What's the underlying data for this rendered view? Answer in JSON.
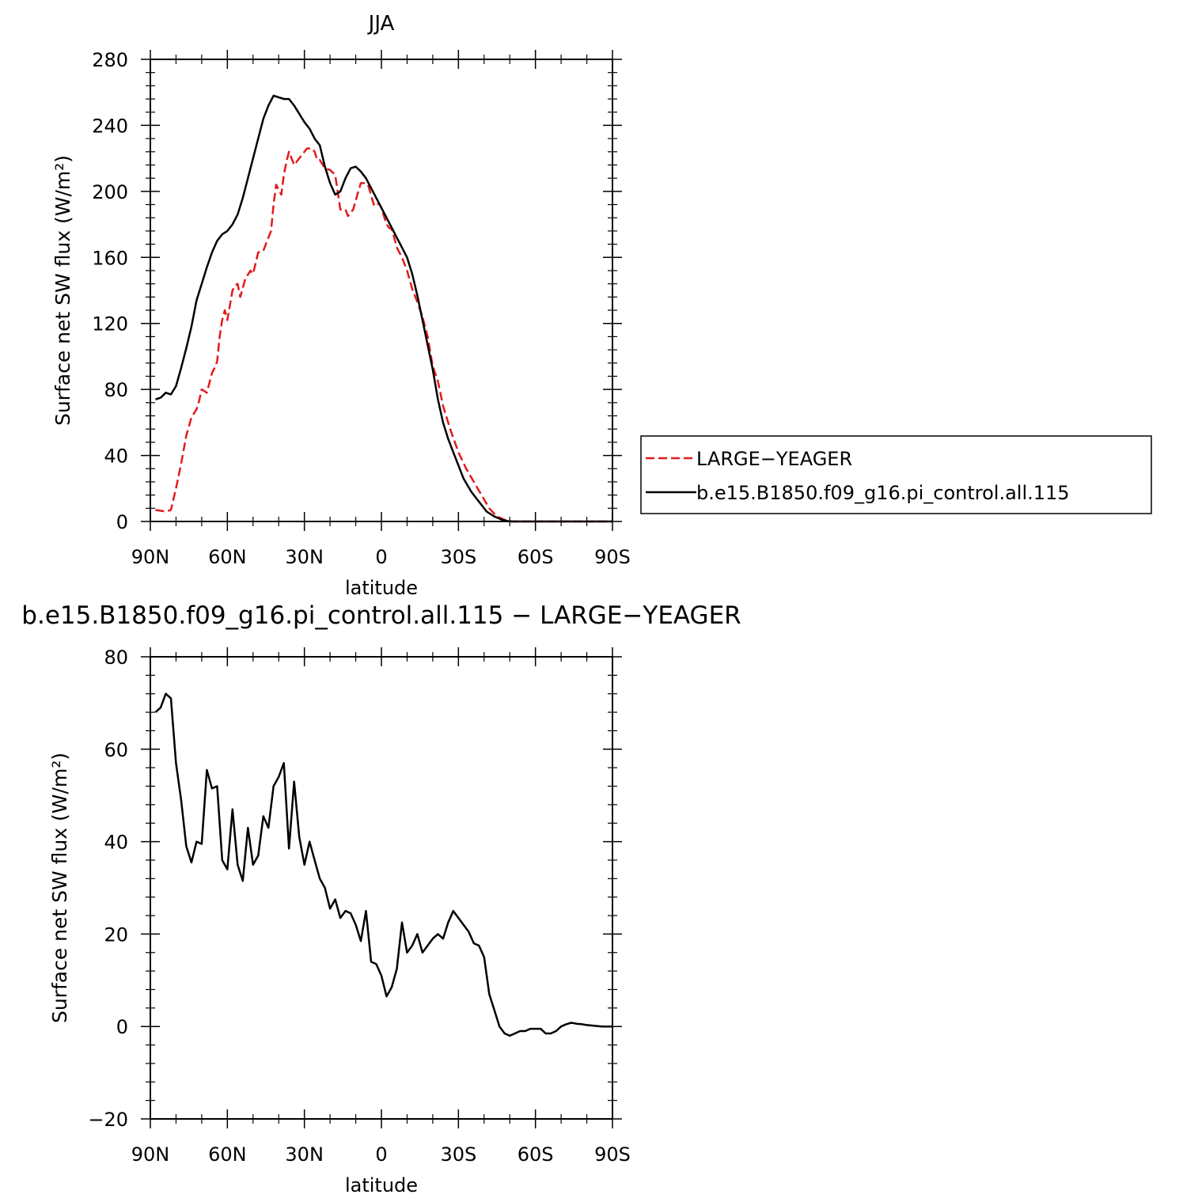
{
  "chart_data": [
    {
      "type": "line",
      "title": "JJA",
      "xlabel": "latitude",
      "ylabel": "Surface net SW flux (W/m²)",
      "ylim": [
        0,
        280
      ],
      "xlim": [
        90,
        -90
      ],
      "y_ticks": [
        0,
        40,
        80,
        120,
        160,
        200,
        240,
        280
      ],
      "y_tick_labels": [
        "0",
        "40",
        "80",
        "120",
        "160",
        "200",
        "240",
        "280"
      ],
      "x_ticks": [
        90,
        60,
        30,
        0,
        -30,
        -60,
        -90
      ],
      "x_tick_labels": [
        "90N",
        "60N",
        "30N",
        "0",
        "30S",
        "60S",
        "90S"
      ],
      "legend_position": "right",
      "series": [
        {
          "name": "LARGE−YEAGER",
          "color": "#e31a1c",
          "style": "dashed",
          "x": [
            88,
            84,
            82,
            80,
            78,
            76,
            74,
            72,
            71,
            70,
            68,
            66,
            65,
            64,
            63,
            62,
            61,
            60,
            58,
            57,
            56,
            55,
            53,
            51,
            50,
            48,
            46,
            44,
            43,
            42,
            41,
            39,
            38,
            37,
            36,
            34,
            32,
            31,
            29,
            27,
            26,
            25,
            24,
            22,
            20,
            18,
            16,
            14,
            13,
            11,
            9,
            8,
            6,
            5,
            3,
            2,
            1,
            0,
            -1,
            -2,
            -3,
            -4,
            -5,
            -6,
            -8,
            -10,
            -12,
            -14,
            -16,
            -18,
            -20,
            -22,
            -24,
            -27,
            -30,
            -33,
            -36,
            -39,
            -42,
            -45,
            -48,
            -51,
            -54,
            -57,
            -60,
            -63,
            -65,
            -67,
            -70,
            -75,
            -80,
            -85,
            -90
          ],
          "y": [
            7,
            6,
            7,
            20,
            35,
            52,
            63,
            68,
            73,
            80,
            78,
            90,
            93,
            97,
            112,
            122,
            128,
            122,
            140,
            143,
            144,
            136,
            147,
            152,
            150,
            163,
            164,
            172,
            176,
            192,
            204,
            198,
            210,
            218,
            224,
            216,
            220,
            222,
            226,
            226,
            224,
            219,
            219,
            214,
            213,
            210,
            189,
            189,
            185,
            189,
            200,
            205,
            205,
            203,
            192,
            191,
            193,
            190,
            185,
            180,
            178,
            177,
            172,
            166,
            160,
            152,
            141,
            133,
            124,
            112,
            94,
            85,
            70,
            55,
            42,
            32,
            24,
            16,
            8,
            3,
            1,
            0,
            0,
            0,
            0,
            0,
            0,
            0,
            0,
            0,
            0,
            0,
            0
          ]
        },
        {
          "name": "b.e15.B1850.f09_g16.pi_control.all.115",
          "color": "#000000",
          "style": "solid",
          "x": [
            88,
            86,
            84,
            82,
            80,
            78,
            76,
            74,
            72,
            70,
            68,
            66,
            64,
            62,
            60,
            58,
            56,
            54,
            52,
            50,
            48,
            46,
            44,
            42,
            40,
            38,
            36,
            34,
            32,
            30,
            28,
            26,
            24,
            22,
            20,
            18,
            16,
            14,
            12,
            10,
            8,
            6,
            4,
            2,
            0,
            -2,
            -4,
            -6,
            -8,
            -10,
            -12,
            -14,
            -16,
            -18,
            -20,
            -22,
            -24,
            -26,
            -28,
            -30,
            -32,
            -35,
            -38,
            -41,
            -44,
            -47,
            -50,
            -53,
            -56,
            -59,
            -62,
            -64,
            -66,
            -68,
            -70,
            -75,
            -80,
            -85,
            -90
          ],
          "y": [
            74,
            75,
            78,
            77,
            82,
            93,
            105,
            118,
            134,
            144,
            154,
            163,
            170,
            174,
            176,
            180,
            186,
            196,
            208,
            220,
            232,
            244,
            252,
            258,
            257,
            256,
            256,
            252,
            247,
            242,
            238,
            232,
            228,
            215,
            205,
            198,
            200,
            208,
            214,
            215,
            212,
            208,
            202,
            196,
            190,
            184,
            178,
            172,
            166,
            160,
            150,
            137,
            122,
            107,
            92,
            74,
            60,
            50,
            42,
            34,
            26,
            18,
            12,
            6,
            3,
            1,
            0,
            0,
            0,
            0,
            0,
            0,
            0,
            0,
            0,
            0,
            0,
            0,
            0
          ]
        }
      ]
    },
    {
      "type": "line",
      "title": "b.e15.B1850.f09_g16.pi_control.all.115 − LARGE−YEAGER",
      "xlabel": "latitude",
      "ylabel": "Surface net SW flux (W/m²)",
      "ylim": [
        -20,
        80
      ],
      "xlim": [
        90,
        -90
      ],
      "y_ticks": [
        -20,
        0,
        20,
        40,
        60,
        80
      ],
      "y_tick_labels": [
        "−20",
        "0",
        "20",
        "40",
        "60",
        "80"
      ],
      "x_ticks": [
        90,
        60,
        30,
        0,
        -30,
        -60,
        -90
      ],
      "x_tick_labels": [
        "90N",
        "60N",
        "30N",
        "0",
        "30S",
        "60S",
        "90S"
      ],
      "series": [
        {
          "color": "#000000",
          "style": "solid",
          "x": [
            88,
            86,
            84,
            82,
            80,
            78,
            76,
            74,
            72,
            70,
            68,
            66,
            64,
            62,
            60,
            58,
            56,
            54,
            52,
            50,
            48,
            46,
            44,
            42,
            40,
            38,
            36,
            34,
            32,
            30,
            28,
            26,
            24,
            22,
            20,
            18,
            16,
            14,
            12,
            10,
            8,
            6,
            4,
            2,
            0,
            -2,
            -4,
            -6,
            -8,
            -10,
            -12,
            -14,
            -16,
            -18,
            -20,
            -22,
            -24,
            -26,
            -28,
            -30,
            -32,
            -34,
            -36,
            -38,
            -40,
            -42,
            -44,
            -46,
            -48,
            -50,
            -52,
            -54,
            -56,
            -58,
            -60,
            -62,
            -64,
            -66,
            -68,
            -70,
            -72,
            -74,
            -76,
            -78,
            -80,
            -82,
            -84,
            -86,
            -88,
            -90
          ],
          "y": [
            68,
            69,
            72,
            71,
            57,
            49,
            39,
            35.5,
            40,
            39.5,
            55.5,
            51.5,
            52,
            36,
            34,
            47,
            35,
            31.5,
            43,
            35,
            37,
            45.5,
            43,
            52,
            54,
            57,
            38.5,
            53,
            41,
            35,
            40,
            36,
            32,
            30,
            25.5,
            27.5,
            23.5,
            25,
            24.5,
            22,
            18.5,
            25,
            14,
            13.5,
            11,
            6.5,
            8.5,
            12.5,
            22.5,
            16,
            17.5,
            20,
            16,
            17.5,
            19,
            20,
            19,
            22.5,
            25,
            23.5,
            22,
            20.5,
            18,
            17.5,
            15,
            7,
            3.5,
            0,
            -1.5,
            -2,
            -1.5,
            -1,
            -1,
            -0.5,
            -0.5,
            -0.5,
            -1.5,
            -1.5,
            -1,
            0,
            0.5,
            0.8,
            0.6,
            0.5,
            0.3,
            0.2,
            0.1,
            0,
            0,
            0
          ]
        }
      ]
    }
  ]
}
